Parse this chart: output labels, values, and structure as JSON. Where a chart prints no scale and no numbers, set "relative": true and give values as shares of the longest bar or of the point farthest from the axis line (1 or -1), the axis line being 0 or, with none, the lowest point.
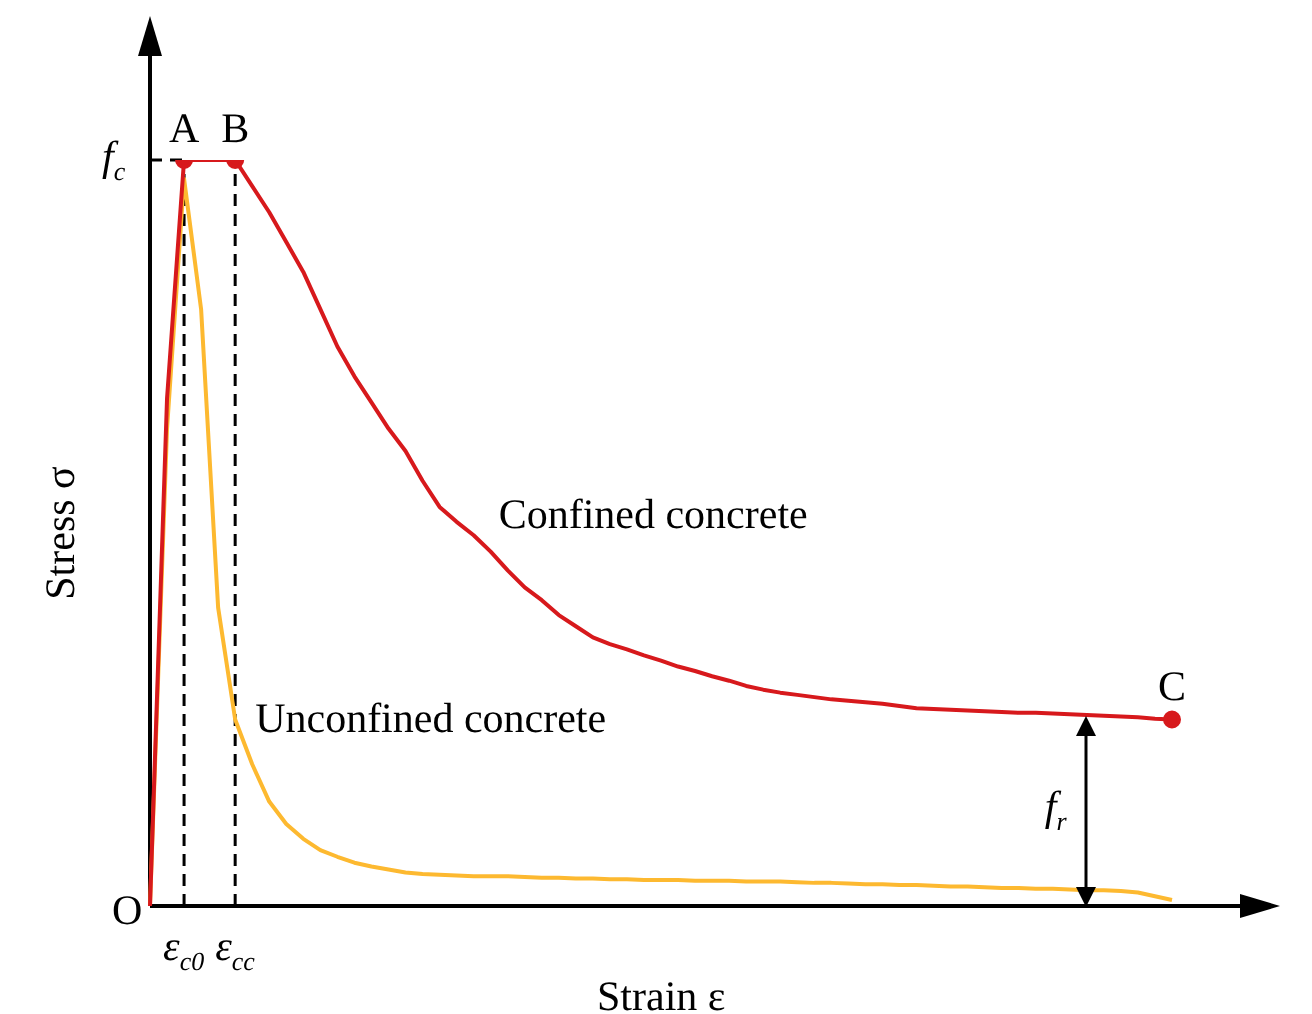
{
  "chart_data": {
    "type": "line",
    "relative": true,
    "xlabel": "Strain ε",
    "ylabel": "Stress σ",
    "legend": false,
    "grid": false,
    "marker": "none",
    "tick_labels": "x",
    "categories": [
      null,
      null,
      "ε$_{c0}$",
      null,
      null,
      "ε$_{cc}$",
      null,
      null,
      null,
      null,
      null,
      null,
      null,
      null,
      null,
      null,
      null,
      null,
      null,
      null,
      null,
      null,
      null,
      null,
      null,
      null,
      null,
      null,
      null,
      null,
      null,
      null,
      null,
      null,
      null,
      null,
      null,
      null,
      null,
      null,
      null,
      null,
      null,
      null,
      null,
      null,
      null,
      null,
      null,
      null,
      null,
      null,
      null,
      null,
      null,
      null,
      null,
      null,
      null,
      null,
      null
    ],
    "series": [
      {
        "name": "Confined concrete",
        "color": "#d7191c",
        "values": [
          0,
          0.68,
          1,
          1,
          1,
          1,
          0.965,
          0.93,
          0.89,
          0.85,
          0.8,
          0.75,
          0.71,
          0.675,
          0.64,
          0.61,
          0.57,
          0.535,
          0.515,
          0.497,
          0.475,
          0.45,
          0.427,
          0.41,
          0.39,
          0.375,
          0.36,
          0.351,
          0.344,
          0.336,
          0.329,
          0.321,
          0.315,
          0.308,
          0.302,
          0.295,
          0.29,
          0.286,
          0.283,
          0.28,
          0.277,
          0.275,
          0.273,
          0.271,
          0.268,
          0.265,
          0.264,
          0.263,
          0.262,
          0.261,
          0.26,
          0.259,
          0.259,
          0.258,
          0.257,
          0.256,
          0.255,
          0.254,
          0.253,
          0.251,
          0.25
        ]
      },
      {
        "name": "Unconfined concrete",
        "color": "#fdb930",
        "values": [
          0,
          0.64,
          0.975,
          0.8,
          0.4,
          0.25,
          0.19,
          0.14,
          0.11,
          0.09,
          0.075,
          0.066,
          0.058,
          0.053,
          0.049,
          0.045,
          0.043,
          0.042,
          0.041,
          0.04,
          0.04,
          0.04,
          0.039,
          0.038,
          0.038,
          0.037,
          0.037,
          0.036,
          0.036,
          0.035,
          0.035,
          0.035,
          0.034,
          0.034,
          0.034,
          0.033,
          0.033,
          0.033,
          0.032,
          0.031,
          0.031,
          0.03,
          0.029,
          0.029,
          0.028,
          0.028,
          0.027,
          0.026,
          0.026,
          0.025,
          0.024,
          0.024,
          0.023,
          0.023,
          0.022,
          0.021,
          0.021,
          0.02,
          0.018,
          0.013,
          0.008
        ]
      }
    ],
    "ref_lines": [
      {
        "axis": "y",
        "value": 1,
        "label": "f$_{c}$",
        "line_style": "dashed",
        "color": "#000000"
      },
      {
        "axis": "x",
        "value": "ε$_{c0}$",
        "line_style": "dashed",
        "color": "#000000"
      },
      {
        "axis": "x",
        "value": "ε$_{cc}$",
        "line_style": "dashed",
        "color": "#000000"
      }
    ],
    "annotations": [
      "O",
      {
        "text": "A",
        "x": "ε$_{c0}$",
        "y": 1
      },
      {
        "text": "B",
        "x": "ε$_{cc}$",
        "y": 1
      },
      {
        "text": "C",
        "y": 0.25
      },
      "f$_{r}$"
    ]
  }
}
